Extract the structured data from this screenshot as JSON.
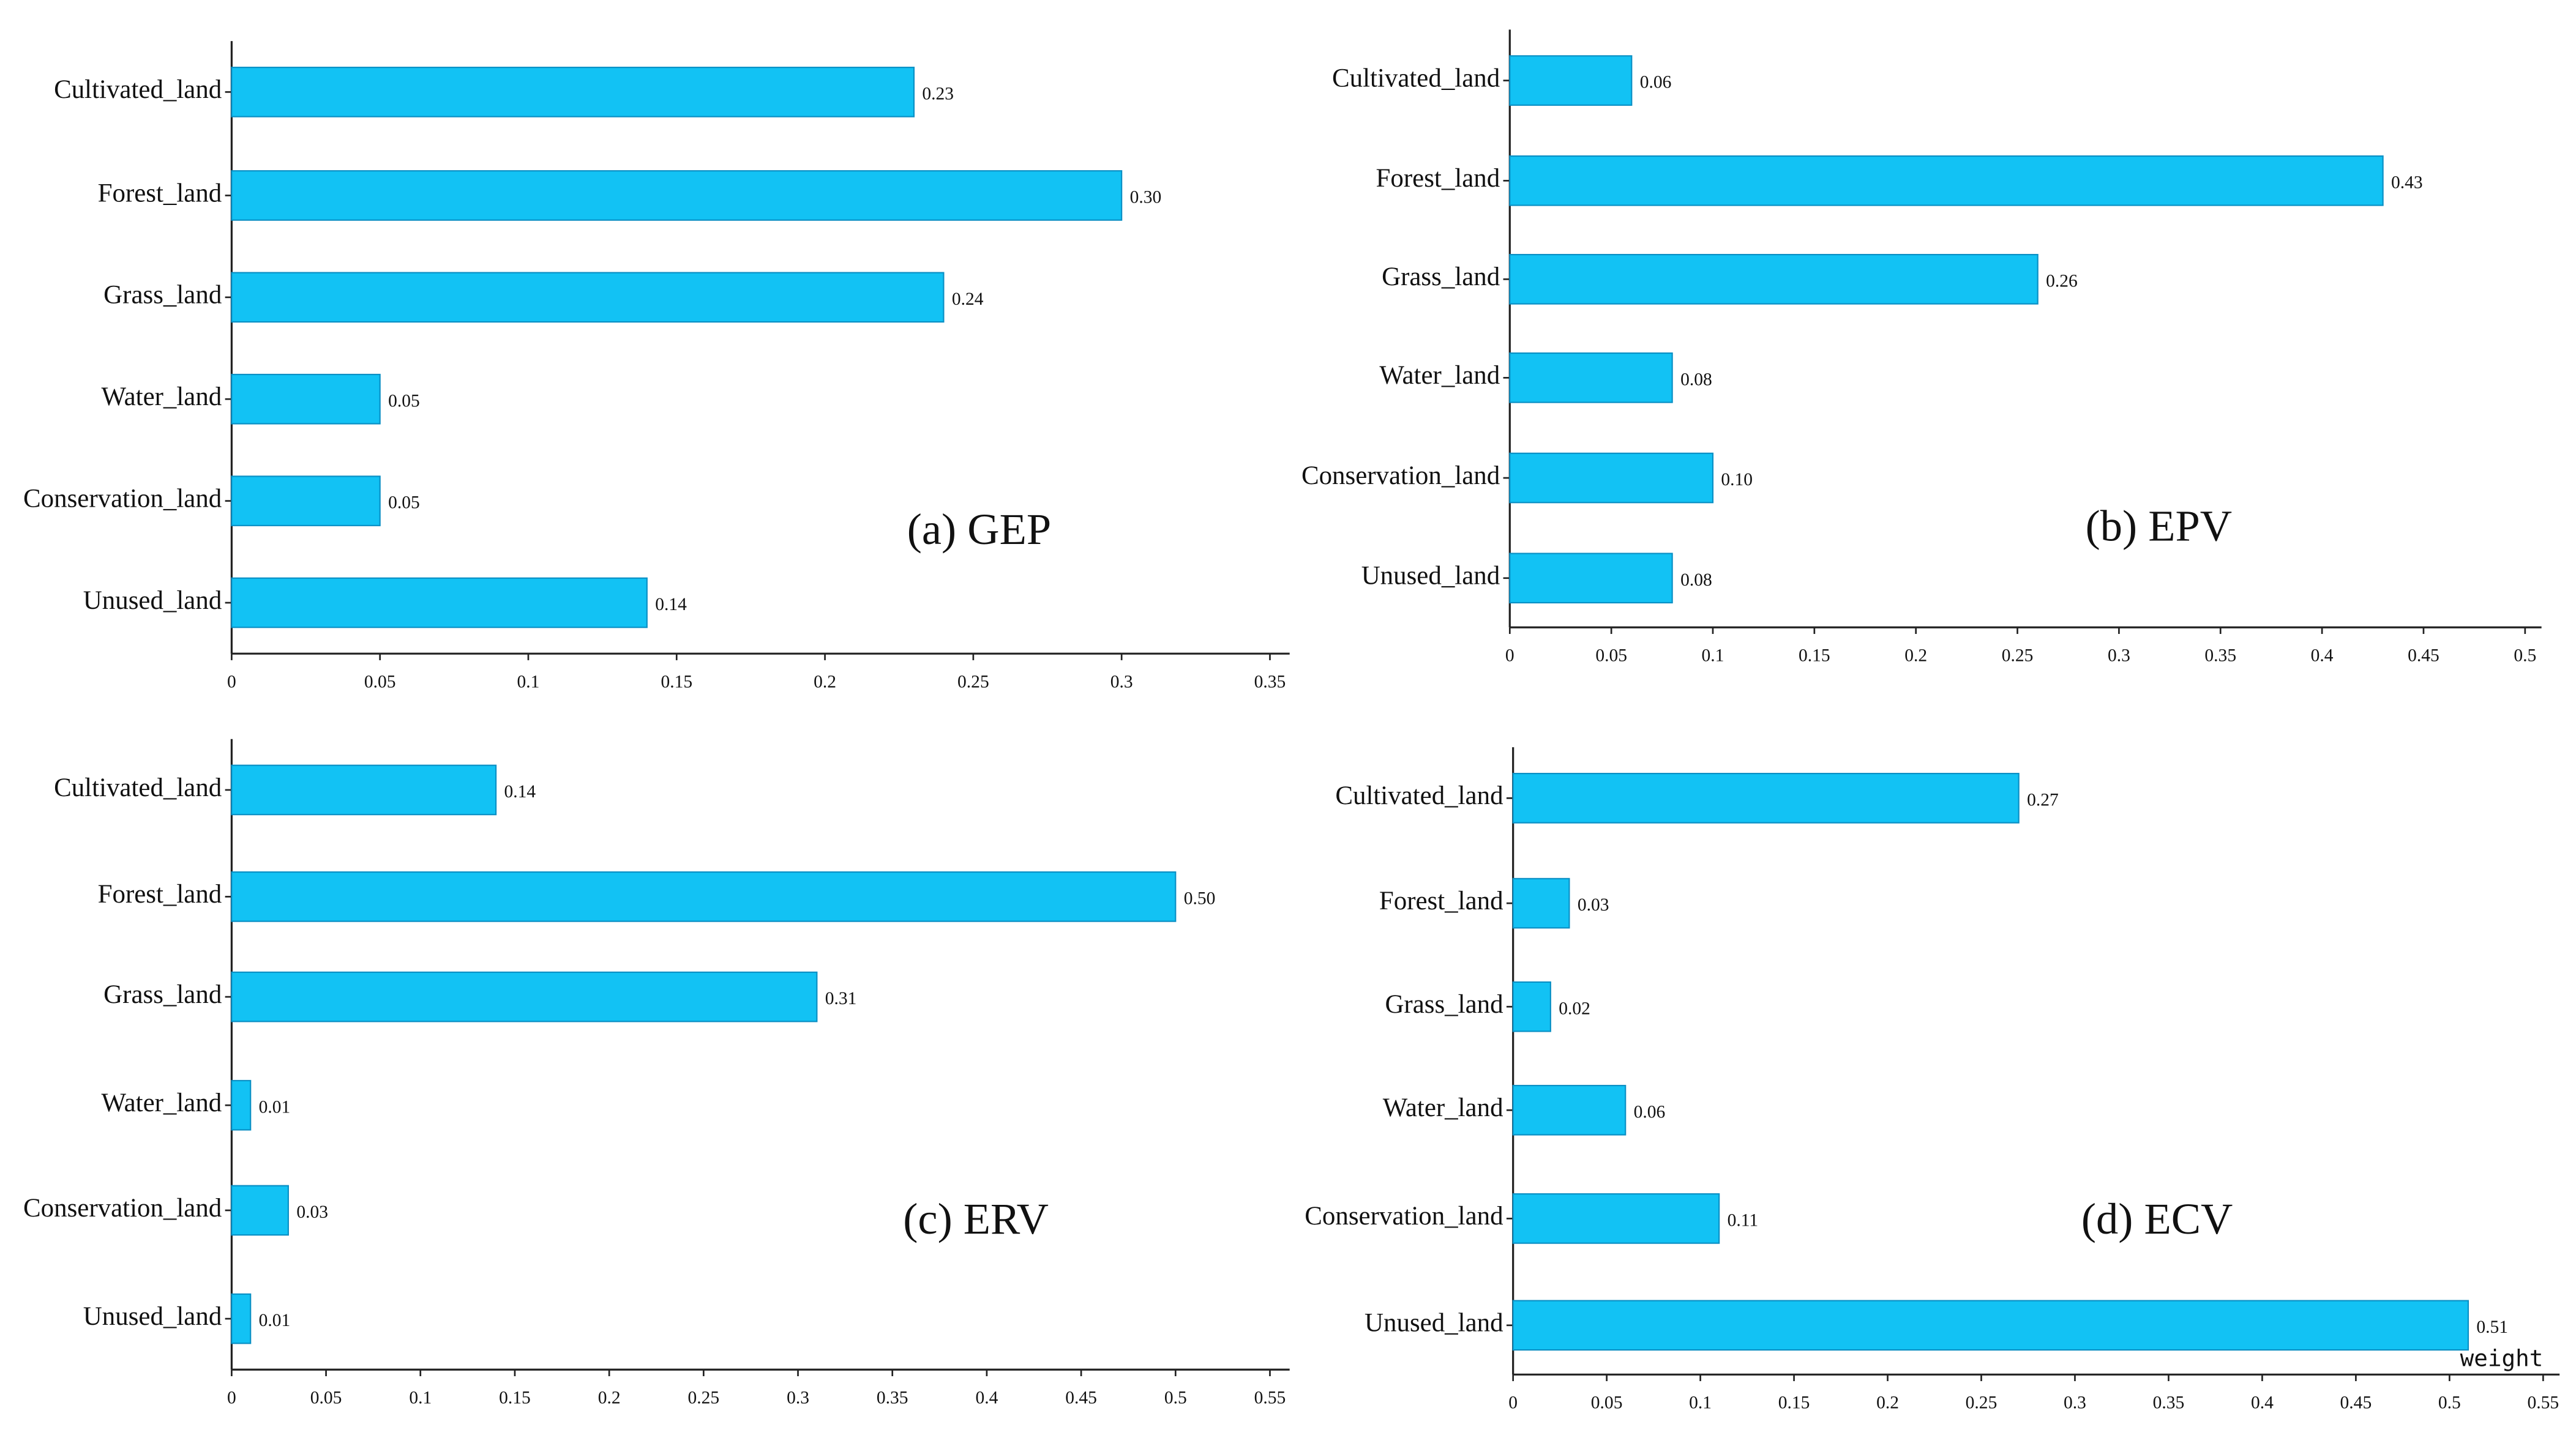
{
  "chart_data": [
    {
      "type": "bar",
      "orientation": "horizontal",
      "title": "(a) GEP",
      "color": "#12c2f4",
      "categories": [
        "Cultivated_land",
        "Forest_land",
        "Grass_land",
        "Water_land",
        "Conservation_land",
        "Unused_land"
      ],
      "values": [
        0.23,
        0.3,
        0.24,
        0.05,
        0.05,
        0.14
      ],
      "value_labels": [
        "0.23",
        "0.30",
        "0.24",
        "0.05",
        "0.05",
        "0.14"
      ],
      "xlim": [
        0,
        0.35
      ],
      "xticks": [
        0,
        0.05,
        0.1,
        0.15,
        0.2,
        0.25,
        0.3,
        0.35
      ]
    },
    {
      "type": "bar",
      "orientation": "horizontal",
      "title": "(b) EPV",
      "color": "#12c2f4",
      "categories": [
        "Cultivated_land",
        "Forest_land",
        "Grass_land",
        "Water_land",
        "Conservation_land",
        "Unused_land"
      ],
      "values": [
        0.06,
        0.43,
        0.26,
        0.08,
        0.1,
        0.08
      ],
      "value_labels": [
        "0.06",
        "0.43",
        "0.26",
        "0.08",
        "0.10",
        "0.08"
      ],
      "xlim": [
        0,
        0.5
      ],
      "xticks": [
        0,
        0.05,
        0.1,
        0.15,
        0.2,
        0.25,
        0.3,
        0.35,
        0.4,
        0.45,
        0.5
      ]
    },
    {
      "type": "bar",
      "orientation": "horizontal",
      "title": "(c) ERV",
      "color": "#12c2f4",
      "categories": [
        "Cultivated_land",
        "Forest_land",
        "Grass_land",
        "Water_land",
        "Conservation_land",
        "Unused_land"
      ],
      "values": [
        0.14,
        0.5,
        0.31,
        0.01,
        0.03,
        0.01
      ],
      "value_labels": [
        "0.14",
        "0.50",
        "0.31",
        "0.01",
        "0.03",
        "0.01"
      ],
      "xlim": [
        0,
        0.55
      ],
      "xticks": [
        0,
        0.05,
        0.1,
        0.15,
        0.2,
        0.25,
        0.3,
        0.35,
        0.4,
        0.45,
        0.5,
        0.55
      ]
    },
    {
      "type": "bar",
      "orientation": "horizontal",
      "title": "(d) ECV",
      "color": "#12c2f4",
      "xlabel": "weight",
      "categories": [
        "Cultivated_land",
        "Forest_land",
        "Grass_land",
        "Water_land",
        "Conservation_land",
        "Unused_land"
      ],
      "values": [
        0.27,
        0.03,
        0.02,
        0.06,
        0.11,
        0.51
      ],
      "value_labels": [
        "0.27",
        "0.03",
        "0.02",
        "0.06",
        "0.11",
        "0.51"
      ],
      "xlim": [
        0,
        0.55
      ],
      "xticks": [
        0,
        0.05,
        0.1,
        0.15,
        0.2,
        0.25,
        0.3,
        0.35,
        0.4,
        0.45,
        0.5,
        0.55
      ]
    }
  ]
}
